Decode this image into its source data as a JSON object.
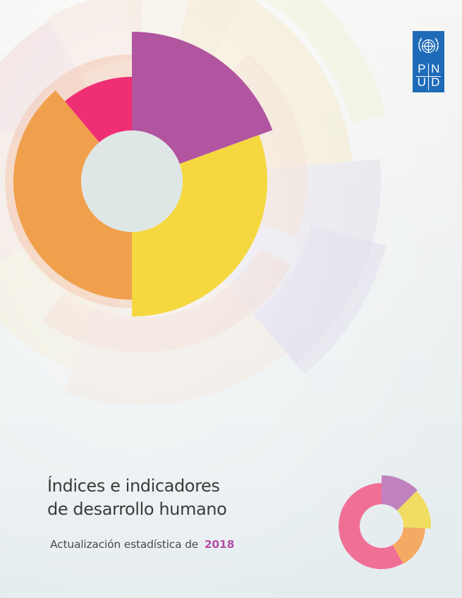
{
  "document": {
    "title_line1": "Índices e indicadores",
    "title_line2": "de desarrollo humano",
    "subtitle": "Actualización estadística de",
    "year": "2018"
  },
  "logo": {
    "letters": [
      "P",
      "N",
      "U",
      "D"
    ],
    "icon": "un-emblem-icon",
    "color": "#1e6bb8"
  },
  "colors": {
    "magenta": "#b155a1",
    "yellow": "#f5d840",
    "orange": "#f0a04c",
    "pink": "#ef2f74",
    "mini_pink": "#f07095",
    "mini_purple": "#c182c0",
    "mini_yellow": "#f0dd62",
    "mini_orange": "#f4aa63",
    "year": "#b04ea6"
  }
}
